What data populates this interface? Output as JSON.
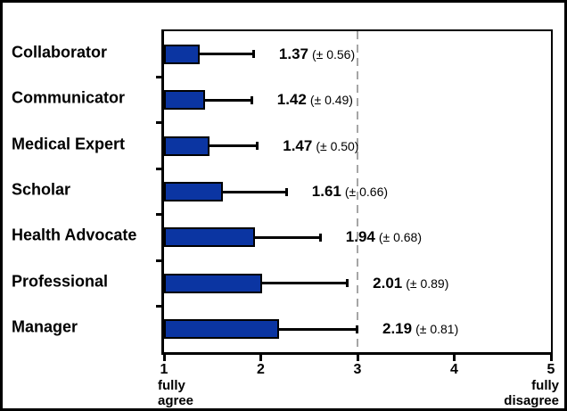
{
  "figure": {
    "background": "#FFFFFF",
    "frame_color": "#000000"
  },
  "chart_data": {
    "type": "bar",
    "orientation": "horizontal",
    "title": "",
    "categories": [
      "Collaborator",
      "Communicator",
      "Medical Expert",
      "Scholar",
      "Health Advocate",
      "Professional",
      "Manager"
    ],
    "values": [
      1.37,
      1.42,
      1.47,
      1.61,
      1.94,
      2.01,
      2.19
    ],
    "errors": [
      0.56,
      0.49,
      0.5,
      0.66,
      0.68,
      0.89,
      0.81
    ],
    "value_labels": [
      "1.37",
      "1.42",
      "1.47",
      "1.61",
      "1.94",
      "2.01",
      "2.19"
    ],
    "error_labels": [
      "(± 0.56)",
      "(± 0.49)",
      "(± 0.50)",
      "(± 0.66)",
      "(± 0.68)",
      "(± 0.89)",
      "(± 0.81)"
    ],
    "xlim": [
      1,
      5
    ],
    "x_ticks": [
      "1",
      "2",
      "3",
      "4",
      "5"
    ],
    "x_axis_left_caption": "fully\nagree",
    "x_axis_right_caption": "fully\ndisagree",
    "reference_line_x": 3,
    "grid": false,
    "legend": false,
    "bar_color": "#0B35A2",
    "bar_border_color": "#000000",
    "error_bar_color": "#000000",
    "reference_line_color": "#A6A6A6",
    "text_color": "#000000"
  }
}
